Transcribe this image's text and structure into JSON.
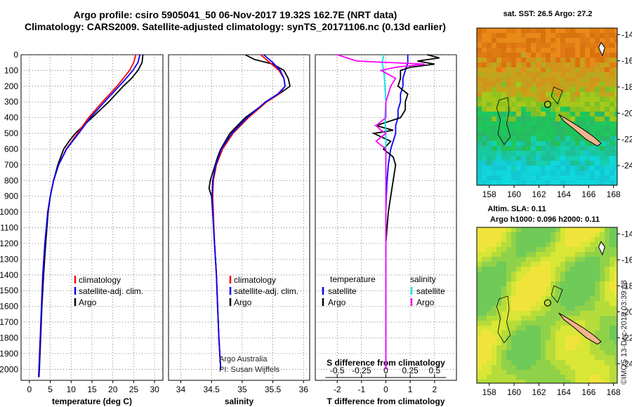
{
  "header": {
    "title_line1": "Argo profile: csiro 5905041_50 06-Nov-2017 19.32S 162.7E (NRT data)",
    "title_line2": "Climatology: CARS2009. Satellite-adjusted climatology: synTS_20171106.nc (0.13d earlier)"
  },
  "colors": {
    "argo": "#000000",
    "climatology": "#ff0000",
    "satellite": "#0000ff",
    "sat_salinity": "#00e5e5",
    "argo_salinity": "#ff00ff"
  },
  "chart_data": [
    {
      "type": "line",
      "name": "temperature",
      "xlabel": "temperature (deg C)",
      "ylabel": "",
      "xlim": [
        -2,
        32
      ],
      "ylim": [
        2070,
        0
      ],
      "xticks": [
        0,
        5,
        10,
        15,
        20,
        25,
        30
      ],
      "yticks": [
        0,
        100,
        200,
        300,
        400,
        500,
        600,
        700,
        800,
        900,
        1000,
        1100,
        1200,
        1300,
        1400,
        1500,
        1600,
        1700,
        1800,
        1900,
        2000
      ],
      "legend": [
        "climatology",
        "satellite-adj. clim.",
        "Argo"
      ],
      "series": [
        {
          "name": "Argo",
          "color": "#000000",
          "depth": [
            0,
            50,
            100,
            150,
            200,
            300,
            400,
            500,
            550,
            600,
            700,
            800,
            900,
            1000,
            1200,
            1400,
            1600,
            1800,
            2000,
            2050
          ],
          "values": [
            27.2,
            27.0,
            26.0,
            24.5,
            22.5,
            19.0,
            15.0,
            11.0,
            9.5,
            8.2,
            6.8,
            5.8,
            5.0,
            4.5,
            3.9,
            3.4,
            3.0,
            2.7,
            2.4,
            2.3
          ]
        },
        {
          "name": "climatology",
          "color": "#ff0000",
          "depth": [
            0,
            50,
            100,
            150,
            200,
            300,
            400,
            500,
            600,
            700,
            800,
            900,
            1000,
            1200,
            1400,
            1600,
            1800,
            2000,
            2050
          ],
          "values": [
            25.5,
            25.0,
            24.0,
            22.5,
            21.0,
            17.5,
            14.2,
            11.5,
            8.8,
            7.0,
            5.8,
            5.0,
            4.4,
            3.7,
            3.2,
            2.9,
            2.6,
            2.3,
            2.2
          ]
        },
        {
          "name": "satellite-adj. clim.",
          "color": "#0000ff",
          "depth": [
            0,
            50,
            100,
            150,
            200,
            300,
            400,
            500,
            600,
            700,
            800,
            900,
            1000,
            1200,
            1400,
            1600,
            1800,
            2000,
            2050
          ],
          "values": [
            26.5,
            26.0,
            24.8,
            23.2,
            21.5,
            18.0,
            14.6,
            11.8,
            8.9,
            7.0,
            5.8,
            5.0,
            4.4,
            3.7,
            3.2,
            2.9,
            2.6,
            2.3,
            2.2
          ]
        }
      ]
    },
    {
      "type": "line",
      "name": "salinity",
      "xlabel": "salinity",
      "ylabel": "",
      "xlim": [
        33.8,
        36.1
      ],
      "ylim": [
        2070,
        0
      ],
      "xticks": [
        34,
        34.5,
        35,
        35.5,
        36
      ],
      "legend": [
        "climatology",
        "satellite-adj. clim.",
        "Argo"
      ],
      "series": [
        {
          "name": "Argo",
          "color": "#000000",
          "depth": [
            0,
            30,
            60,
            100,
            150,
            200,
            250,
            300,
            400,
            500,
            600,
            650,
            700,
            750,
            800,
            850,
            900,
            1000,
            1200,
            1400,
            1600,
            1800,
            2000
          ],
          "values": [
            35.05,
            35.2,
            35.5,
            35.68,
            35.75,
            35.78,
            35.6,
            35.4,
            35.05,
            34.8,
            34.65,
            34.6,
            34.56,
            34.52,
            34.48,
            34.46,
            34.5,
            34.52,
            34.55,
            34.58,
            34.6,
            34.62,
            34.65
          ]
        },
        {
          "name": "climatology",
          "color": "#ff0000",
          "depth": [
            0,
            50,
            100,
            150,
            200,
            250,
            300,
            400,
            500,
            600,
            700,
            800,
            900,
            1000,
            1200,
            1400,
            1600,
            1800,
            2000
          ],
          "values": [
            35.3,
            35.45,
            35.6,
            35.68,
            35.7,
            35.6,
            35.4,
            35.1,
            34.85,
            34.68,
            34.58,
            34.53,
            34.52,
            34.53,
            34.55,
            34.58,
            34.6,
            34.62,
            34.65
          ]
        },
        {
          "name": "satellite-adj. clim.",
          "color": "#0000ff",
          "depth": [
            0,
            50,
            100,
            150,
            200,
            250,
            300,
            400,
            500,
            600,
            700,
            800,
            900,
            1000,
            1200,
            1400,
            1600,
            1800,
            2000
          ],
          "values": [
            35.35,
            35.5,
            35.62,
            35.68,
            35.7,
            35.58,
            35.38,
            35.08,
            34.83,
            34.66,
            34.57,
            34.52,
            34.51,
            34.52,
            34.55,
            34.58,
            34.6,
            34.62,
            34.65
          ]
        }
      ]
    },
    {
      "type": "line",
      "name": "difference",
      "xlabel": "T difference from climatology",
      "ylabel": "",
      "xlim": [
        -2.9,
        2.9
      ],
      "ylim": [
        2070,
        0
      ],
      "xticks": [
        -2,
        -1,
        0,
        1,
        2
      ],
      "s_axis": {
        "label": "S difference from climatology",
        "ticks": [
          "-0.5",
          "-0.25",
          "0",
          "0.25",
          "0.5"
        ],
        "values": [
          -0.5,
          -0.25,
          0,
          0.25,
          0.5
        ]
      },
      "legend": {
        "temperature_title": "temperature",
        "salinity_title": "salinity",
        "items": [
          "satellite",
          "Argo"
        ]
      },
      "series": [
        {
          "name": "T satellite",
          "color": "#0000ff",
          "depth": [
            0,
            50,
            100,
            150,
            200,
            250,
            300,
            350,
            400,
            450,
            500,
            550,
            600,
            700,
            800,
            900,
            1000,
            1200,
            1400,
            1600,
            1800,
            2000
          ],
          "values": [
            0.9,
            0.9,
            0.8,
            0.7,
            0.7,
            0.6,
            0.6,
            0.5,
            0.5,
            0.4,
            0.4,
            0.3,
            0.2,
            0.1,
            0.05,
            0.02,
            0.0,
            0.0,
            0.0,
            0.0,
            0.0,
            0.0
          ]
        },
        {
          "name": "T Argo",
          "color": "#000000",
          "depth": [
            0,
            20,
            40,
            60,
            80,
            100,
            150,
            200,
            250,
            300,
            350,
            400,
            450,
            480,
            500,
            550,
            600,
            650,
            700,
            800,
            900,
            1000,
            1100,
            1200,
            1400,
            1600,
            1800,
            2000
          ],
          "values": [
            1.7,
            2.2,
            1.3,
            2.0,
            1.0,
            0.6,
            0.6,
            0.5,
            0.9,
            0.8,
            0.8,
            0.6,
            -0.4,
            0.3,
            -0.5,
            0.2,
            -0.1,
            0.3,
            0.4,
            0.3,
            0.2,
            0.1,
            0.05,
            0.0,
            0.0,
            0.0,
            0.0,
            0.0
          ]
        },
        {
          "name": "S satellite",
          "color": "#00e5e5",
          "depth": [
            0,
            50,
            100,
            200,
            300,
            400,
            500,
            600,
            700,
            800,
            900,
            1000,
            1200,
            1400,
            1600,
            1800,
            2000
          ],
          "values": [
            -0.02,
            -0.04,
            -0.02,
            -0.01,
            0.0,
            -0.01,
            0.0,
            0.0,
            0.0,
            0.0,
            0.0,
            0.0,
            0.0,
            0.0,
            0.0,
            0.0,
            0.0
          ]
        },
        {
          "name": "S Argo",
          "color": "#ff00ff",
          "depth": [
            0,
            40,
            60,
            80,
            100,
            150,
            200,
            300,
            400,
            450,
            480,
            500,
            550,
            600,
            700,
            800,
            900,
            1000,
            1200,
            1400,
            1600,
            1800,
            2000
          ],
          "values": [
            -0.5,
            -0.3,
            0.4,
            0.1,
            -0.05,
            0.1,
            0.05,
            0.0,
            0.0,
            -0.1,
            -0.05,
            0.0,
            -0.1,
            0.0,
            0.0,
            0.0,
            0.0,
            0.0,
            0.0,
            0.0,
            0.0,
            0.0,
            0.0
          ]
        }
      ]
    },
    {
      "type": "heatmap",
      "name": "sst-map",
      "title": "sat. SST: 26.5 Argo: 27.2",
      "xticks": [
        158,
        160,
        162,
        164,
        166,
        168
      ],
      "yticks": [
        -14,
        -16,
        -18,
        -20,
        -22,
        -24
      ],
      "xlim": [
        157,
        168.3
      ],
      "ylim": [
        -25.5,
        -13.5
      ],
      "argo_position": {
        "lon": 162.7,
        "lat": -19.32
      }
    },
    {
      "type": "heatmap",
      "name": "sla-map",
      "title_line1": "Altim. SLA: 0.11",
      "title_line2": "Argo h1000: 0.096 h2000: 0.11",
      "xticks": [
        158,
        160,
        162,
        164,
        166,
        168
      ],
      "yticks": [
        -14,
        -16,
        -18,
        -20,
        -22,
        -24
      ],
      "xlim": [
        157,
        168.3
      ],
      "ylim": [
        -25.5,
        -13.5
      ],
      "argo_position": {
        "lon": 162.7,
        "lat": -19.32
      }
    }
  ],
  "credits": {
    "argo_line1": "Argo Australia",
    "argo_line2": "PI: Susan Wijffels",
    "imos": "©IMOS 13-Dec-2018 03:39:08"
  }
}
